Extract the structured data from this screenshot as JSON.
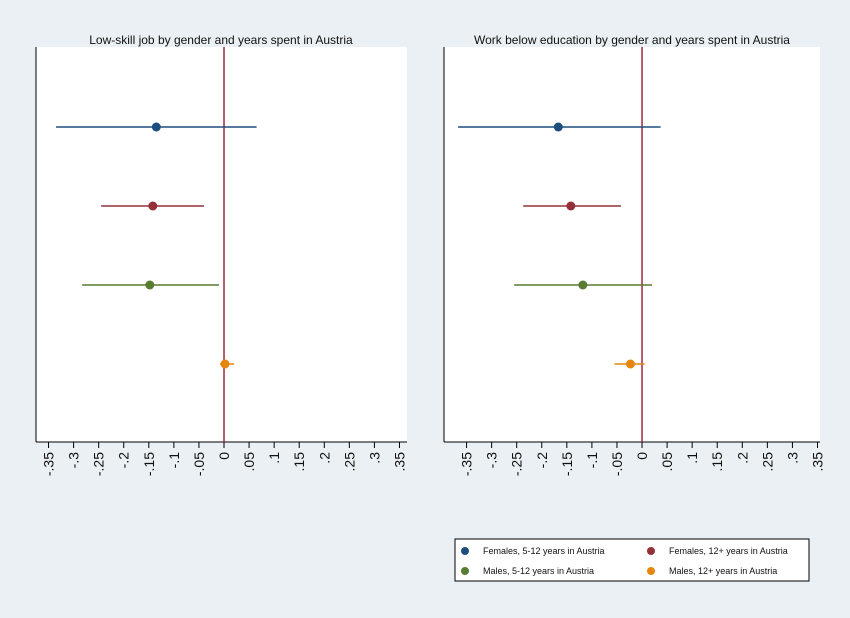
{
  "chart_data": [
    {
      "type": "scatter",
      "title": "Low-skill job by gender and years spent in Austria",
      "xlim": [
        -0.375,
        0.365
      ],
      "ticks": [
        "-.35",
        "-.3",
        "-.25",
        "-.2",
        "-.15",
        "-.1",
        "-.05",
        "0",
        ".05",
        ".1",
        ".15",
        ".2",
        ".25",
        ".3",
        ".35"
      ],
      "tick_values": [
        -0.35,
        -0.3,
        -0.25,
        -0.2,
        -0.15,
        -0.1,
        -0.05,
        0,
        0.05,
        0.1,
        0.15,
        0.2,
        0.25,
        0.3,
        0.35
      ],
      "reference_line": 0,
      "series": [
        {
          "name": "Females, 5-12 years in Austria",
          "color": "#1c4f7d",
          "estimate": -0.135,
          "ci": [
            -0.335,
            0.065
          ]
        },
        {
          "name": "Females, 12+ years in Austria",
          "color": "#943138",
          "estimate": -0.142,
          "ci": [
            -0.245,
            -0.04
          ]
        },
        {
          "name": "Males, 5-12 years in Austria",
          "color": "#587c31",
          "estimate": -0.148,
          "ci": [
            -0.283,
            -0.01
          ]
        },
        {
          "name": "Males, 12+ years in Austria",
          "color": "#e6850f",
          "estimate": 0.002,
          "ci": [
            -0.008,
            0.02
          ]
        }
      ]
    },
    {
      "type": "scatter",
      "title": "Work below education by gender and years spent in Austria",
      "xlim": [
        -0.395,
        0.355
      ],
      "ticks": [
        "-.35",
        "-.3",
        "-.25",
        "-.2",
        "-.15",
        "-.1",
        "-.05",
        "0",
        ".05",
        ".1",
        ".15",
        ".2",
        ".25",
        ".3",
        ".35"
      ],
      "tick_values": [
        -0.35,
        -0.3,
        -0.25,
        -0.2,
        -0.15,
        -0.1,
        -0.05,
        0,
        0.05,
        0.1,
        0.15,
        0.2,
        0.25,
        0.3,
        0.35
      ],
      "reference_line": 0,
      "series": [
        {
          "name": "Females, 5-12 years in Austria",
          "color": "#1c4f7d",
          "estimate": -0.167,
          "ci": [
            -0.367,
            0.037
          ]
        },
        {
          "name": "Females, 12+ years in Austria",
          "color": "#943138",
          "estimate": -0.142,
          "ci": [
            -0.237,
            -0.042
          ]
        },
        {
          "name": "Males, 5-12 years in Austria",
          "color": "#587c31",
          "estimate": -0.118,
          "ci": [
            -0.255,
            0.02
          ]
        },
        {
          "name": "Males, 12+ years in Austria",
          "color": "#e6850f",
          "estimate": -0.023,
          "ci": [
            -0.055,
            0.005
          ]
        }
      ]
    }
  ],
  "legend": {
    "placement": "bottom-right",
    "items": [
      {
        "label": "Females, 5-12 years in Austria",
        "color": "#1c4f7d"
      },
      {
        "label": "Females, 12+ years in Austria",
        "color": "#943138"
      },
      {
        "label": "Males, 5-12 years in Austria",
        "color": "#587c31"
      },
      {
        "label": "Males, 12+ years in Austria",
        "color": "#e6850f"
      }
    ]
  },
  "colors": {
    "reference_line": "#a3263a",
    "background": "#eaf0f3",
    "plot_area": "#ffffff"
  }
}
